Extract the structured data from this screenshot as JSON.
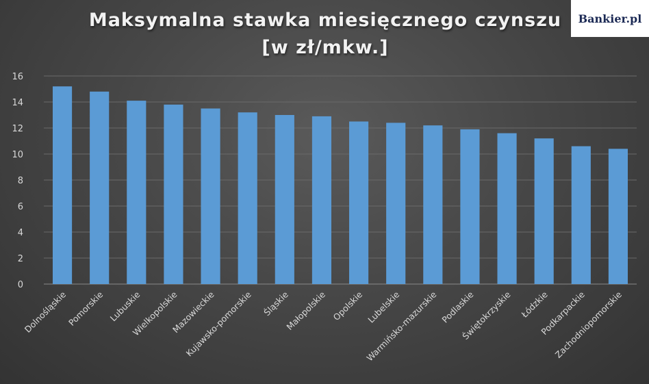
{
  "brand": "Bankier.pl",
  "chart_data": {
    "type": "bar",
    "title_line1": "Maksymalna stawka miesięcznego czynszu",
    "title_line2": "[w zł/mkw.]",
    "xlabel": "",
    "ylabel": "",
    "ylim": [
      0,
      16
    ],
    "yticks": [
      "0",
      "2",
      "4",
      "6",
      "8",
      "10",
      "12",
      "14",
      "16"
    ],
    "grid": true,
    "legend": "none",
    "bar_color": "#5b9bd5",
    "categories": [
      "Dolnośląskie",
      "Pomorskie",
      "Lubuskie",
      "Wielkopolskie",
      "Mazowieckie",
      "Kujawsko-pomorskie",
      "Śląskie",
      "Małopolskie",
      "Opolskie",
      "Lubelskie",
      "Warmińsko-mazurskie",
      "Podlaskie",
      "Świętokrzyskie",
      "Łódzkie",
      "Podkarpackie",
      "Zachodniopomorskie"
    ],
    "values": [
      15.2,
      14.8,
      14.1,
      13.8,
      13.5,
      13.2,
      13.0,
      12.9,
      12.5,
      12.4,
      12.2,
      11.9,
      11.6,
      11.2,
      10.6,
      10.4
    ]
  }
}
